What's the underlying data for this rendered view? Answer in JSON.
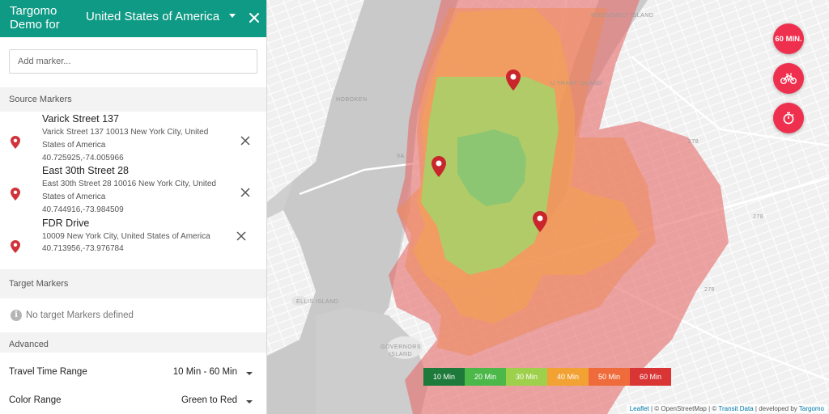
{
  "header": {
    "title": "Targomo Demo for",
    "country": "United States of America"
  },
  "add_marker": {
    "placeholder": "Add marker..."
  },
  "sections": {
    "source": "Source Markers",
    "target": "Target Markers",
    "advanced": "Advanced"
  },
  "source_markers": [
    {
      "name": "Varick Street 137",
      "address": "Varick Street 137 10013 New York City, United States of America",
      "coords": "40.725925,-74.005966"
    },
    {
      "name": "East 30th Street 28",
      "address": "East 30th Street 28 10016 New York City, United States of America",
      "coords": "40.744916,-73.984509"
    },
    {
      "name": "FDR Drive",
      "address": "10009 New York City, United States of America",
      "coords": "40.713956,-73.976784"
    }
  ],
  "target_markers": {
    "empty_message": "No target Markers defined"
  },
  "advanced": {
    "travel_time_label": "Travel Time Range",
    "travel_time_value": "10 Min - 60 Min",
    "color_range_label": "Color Range",
    "color_range_value": "Green to Red"
  },
  "map": {
    "labels": {
      "hoboken": "HOBOKEN",
      "ellis": "ELLIS ISLAND",
      "governors": "GOVERNORS ISLAND",
      "uthant": "U THANT ISLAND",
      "roosevelt": "ROOSEVELT ISLAND",
      "route_278_a": "278",
      "route_278_b": "278",
      "route_278_c": "278",
      "route_9a": "9A"
    },
    "buttons": {
      "time": "60 MIN."
    },
    "legend": [
      {
        "label": "10 Min",
        "color": "#1d7a3a"
      },
      {
        "label": "20 Min",
        "color": "#4cb84a"
      },
      {
        "label": "30 Min",
        "color": "#9ed04c"
      },
      {
        "label": "40 Min",
        "color": "#f2a233"
      },
      {
        "label": "50 Min",
        "color": "#ef6b3b"
      },
      {
        "label": "60 Min",
        "color": "#d93535"
      }
    ],
    "attribution": {
      "leaflet": "Leaflet",
      "osm": "| © OpenStreetMap | ©",
      "transit": "Transit Data",
      "developed": "| developed by",
      "targomo": "Targomo"
    }
  },
  "colors": {
    "header": "#0e9a84",
    "fab": "#ef2f4e",
    "marker_pin": "#d0343b"
  }
}
